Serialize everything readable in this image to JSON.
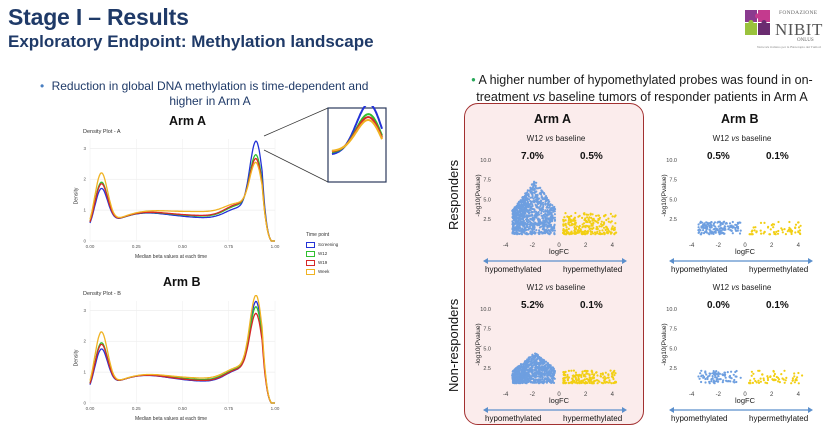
{
  "slide": {
    "title": "Stage I – Results",
    "subtitle": "Exploratory Endpoint: Methylation landscape"
  },
  "logo": {
    "fondazione": "FONDAZIONE",
    "name": "NIBIT",
    "onlus": "ONLUS",
    "tagline": "Network italiano per la Bioterapia dei Tumori"
  },
  "left": {
    "bullet": "Reduction in global DNA methylation is time-dependent and higher in Arm A",
    "armA_title": "Arm A",
    "armB_title": "Arm B",
    "plotA_title": "Density Plot - A",
    "plotB_title": "Density Plot - B",
    "ylabel": "Density",
    "xlabel": "Median beta values at each time",
    "xticks": [
      "0.00",
      "0.25",
      "0.50",
      "0.75",
      "1.00"
    ],
    "yticksA": [
      "0",
      "1",
      "2",
      "3"
    ],
    "yticksB": [
      "0",
      "1",
      "2",
      "3"
    ],
    "legend": {
      "title": "Time point",
      "items": [
        {
          "label": "Screening",
          "color": "#2433d6"
        },
        {
          "label": "W12",
          "color": "#2fbf2f"
        },
        {
          "label": "W19",
          "color": "#d62828"
        },
        {
          "label": "Week",
          "color": "#f0b323"
        }
      ]
    }
  },
  "right": {
    "bullet_pre": "A higher number of hypomethylated probes was found in on-treatment ",
    "bullet_vs": "vs",
    "bullet_post": " baseline tumors of responder patients in Arm A",
    "armA_title": "Arm A",
    "armB_title": "Arm B",
    "row_labels": [
      "Responders",
      "Non-responders"
    ],
    "subtitle_pre": "W12 ",
    "subtitle_vs": "vs",
    "subtitle_post": " baseline",
    "ylabel": "-log10(Pvalue)",
    "xlabel": "logFC",
    "hypo_label": "hypomethylated",
    "hyper_label": "hypermethylated",
    "yticks": [
      "2.5",
      "5.0",
      "7.5",
      "10.0"
    ],
    "xticks": [
      "-4",
      "-2",
      "0",
      "2",
      "4"
    ],
    "panels": [
      {
        "hypo_pct": "7.0%",
        "hyper_pct": "0.5%"
      },
      {
        "hypo_pct": "0.5%",
        "hyper_pct": "0.1%"
      },
      {
        "hypo_pct": "5.2%",
        "hyper_pct": "0.1%"
      },
      {
        "hypo_pct": "0.0%",
        "hyper_pct": "0.1%"
      }
    ],
    "colors": {
      "hypo": "#6e9fe0",
      "hyper": "#f2cf14",
      "axis_arrow": "#5b8fcc",
      "arm_a_border": "#a23030"
    }
  }
}
